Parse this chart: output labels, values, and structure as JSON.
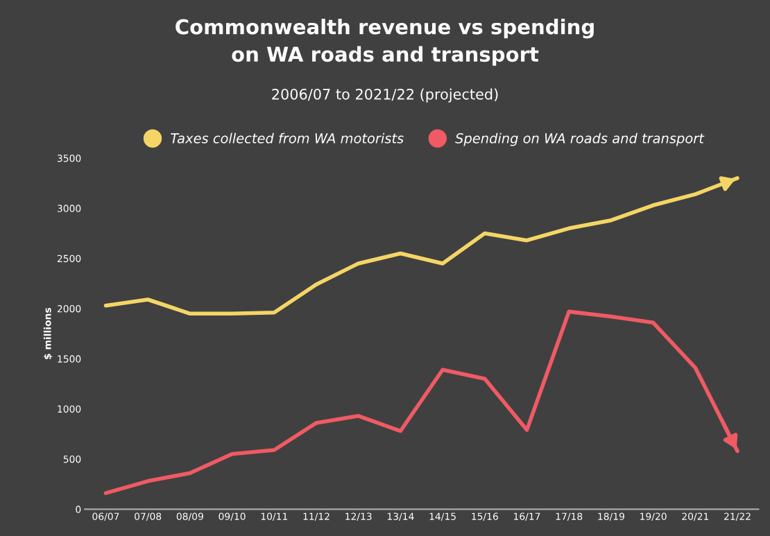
{
  "chart_data": {
    "type": "line",
    "title": "Commonwealth revenue vs spending\non WA roads and transport",
    "subtitle": "2006/07 to 2021/22 (projected)",
    "ylabel": "$ millions",
    "categories": [
      "06/07",
      "07/08",
      "08/09",
      "09/10",
      "10/11",
      "11/12",
      "12/13",
      "13/14",
      "14/15",
      "15/16",
      "16/17",
      "17/18",
      "18/19",
      "19/20",
      "20/21",
      "21/22"
    ],
    "series": [
      {
        "name": "Taxes collected from WA motorists",
        "color": "#f5d565",
        "values": [
          2030,
          2090,
          1950,
          1950,
          1960,
          2240,
          2450,
          2550,
          2450,
          2750,
          2680,
          2800,
          2880,
          3030,
          3140,
          3300
        ]
      },
      {
        "name": "Spending on WA roads and transport",
        "color": "#f05a64",
        "values": [
          160,
          280,
          360,
          550,
          590,
          860,
          930,
          780,
          1390,
          1300,
          790,
          1970,
          1920,
          1860,
          1410,
          580
        ]
      }
    ],
    "ylim": [
      0,
      3500
    ],
    "yticks": [
      0,
      500,
      1000,
      1500,
      2000,
      2500,
      3000,
      3500
    ],
    "grid": false,
    "legend": "top",
    "marker": "none",
    "line_style": "solid"
  }
}
